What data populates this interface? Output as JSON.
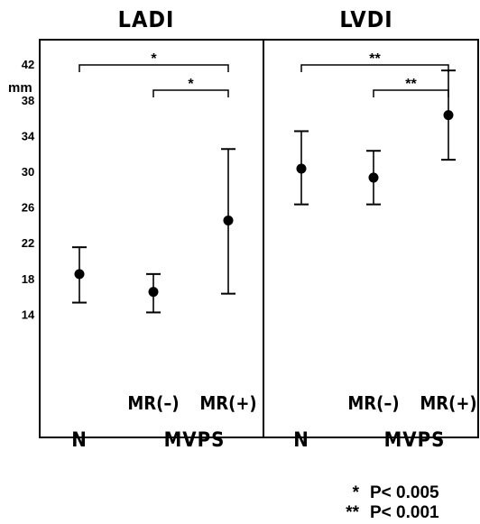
{
  "chart_data": [
    {
      "type": "scatter",
      "title": "LADI",
      "ylabel": "mm",
      "ylim": [
        10,
        48
      ],
      "yticks": [
        "14",
        "18",
        "22",
        "26",
        "30",
        "34",
        "38",
        "42"
      ],
      "categories": [
        "N",
        "MR(–)",
        "MR(+)"
      ],
      "group_label": "MVPS",
      "points": [
        {
          "category": "N",
          "mean": 18.5,
          "low": 15.3,
          "high": 21.5
        },
        {
          "category": "MR(–)",
          "mean": 16.5,
          "low": 14.2,
          "high": 18.5
        },
        {
          "category": "MR(+)",
          "mean": 24.5,
          "low": 16.3,
          "high": 32.5
        }
      ],
      "brackets": [
        {
          "from": "N",
          "to": "MR(+)",
          "mark": "*"
        },
        {
          "from": "MR(–)",
          "to": "MR(+)",
          "mark": "*"
        }
      ]
    },
    {
      "type": "scatter",
      "title": "LVDI",
      "ylabel": "mm",
      "ylim": [
        10,
        48
      ],
      "categories": [
        "N",
        "MR(–)",
        "MR(+)"
      ],
      "group_label": "MVPS",
      "points": [
        {
          "category": "N",
          "mean": 30.3,
          "low": 26.3,
          "high": 34.5
        },
        {
          "category": "MR(–)",
          "mean": 29.3,
          "low": 26.3,
          "high": 32.3
        },
        {
          "category": "MR(+)",
          "mean": 36.3,
          "low": 31.3,
          "high": 41.3
        }
      ],
      "brackets": [
        {
          "from": "N",
          "to": "MR(+)",
          "mark": "**"
        },
        {
          "from": "MR(–)",
          "to": "MR(+)",
          "mark": "**"
        }
      ]
    }
  ],
  "legend": [
    {
      "mark": "*",
      "text": "P< 0.005"
    },
    {
      "mark": "**",
      "text": "P< 0.001"
    }
  ]
}
